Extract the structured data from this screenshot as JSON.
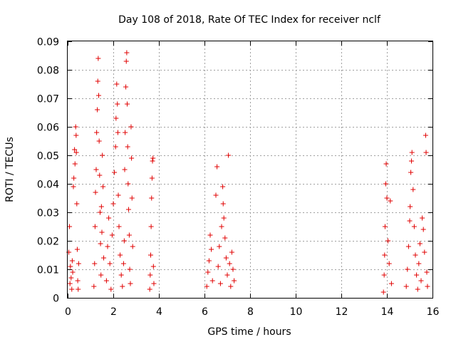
{
  "chart_data": {
    "type": "scatter",
    "title": "Day 108 of 2018, Rate Of TEC Index for receiver nclf",
    "xlabel": "GPS time / hours",
    "ylabel": "ROTI / TECUs",
    "xlim": [
      0,
      16
    ],
    "ylim": [
      0,
      0.09
    ],
    "x_ticks": [
      "0",
      "2",
      "4",
      "6",
      "8",
      "10",
      "12",
      "14",
      "16"
    ],
    "y_ticks": [
      "0",
      "0.01",
      "0.02",
      "0.03",
      "0.04",
      "0.05",
      "0.06",
      "0.07",
      "0.08",
      "0.09"
    ],
    "grid": true,
    "marker": "+",
    "color": "#e00000",
    "series": [
      {
        "name": "ROTI",
        "points": [
          [
            0.05,
            0.016
          ],
          [
            0.08,
            0.025
          ],
          [
            0.1,
            0.005
          ],
          [
            0.12,
            0.011
          ],
          [
            0.15,
            0.007
          ],
          [
            0.18,
            0.003
          ],
          [
            0.2,
            0.013
          ],
          [
            0.22,
            0.009
          ],
          [
            0.25,
            0.039
          ],
          [
            0.27,
            0.042
          ],
          [
            0.3,
            0.052
          ],
          [
            0.32,
            0.047
          ],
          [
            0.35,
            0.06
          ],
          [
            0.37,
            0.057
          ],
          [
            0.38,
            0.051
          ],
          [
            0.4,
            0.033
          ],
          [
            0.42,
            0.017
          ],
          [
            0.44,
            0.006
          ],
          [
            0.46,
            0.003
          ],
          [
            0.48,
            0.012
          ],
          [
            1.15,
            0.004
          ],
          [
            1.18,
            0.012
          ],
          [
            1.2,
            0.025
          ],
          [
            1.22,
            0.037
          ],
          [
            1.25,
            0.045
          ],
          [
            1.27,
            0.058
          ],
          [
            1.3,
            0.066
          ],
          [
            1.32,
            0.076
          ],
          [
            1.34,
            0.084
          ],
          [
            1.36,
            0.071
          ],
          [
            1.38,
            0.055
          ],
          [
            1.4,
            0.043
          ],
          [
            1.42,
            0.03
          ],
          [
            1.44,
            0.019
          ],
          [
            1.46,
            0.008
          ],
          [
            1.48,
            0.032
          ],
          [
            1.5,
            0.023
          ],
          [
            1.52,
            0.05
          ],
          [
            1.55,
            0.039
          ],
          [
            1.58,
            0.014
          ],
          [
            1.7,
            0.006
          ],
          [
            1.75,
            0.018
          ],
          [
            1.8,
            0.028
          ],
          [
            1.85,
            0.012
          ],
          [
            1.9,
            0.003
          ],
          [
            1.95,
            0.022
          ],
          [
            2.0,
            0.033
          ],
          [
            2.05,
            0.044
          ],
          [
            2.1,
            0.053
          ],
          [
            2.12,
            0.063
          ],
          [
            2.15,
            0.075
          ],
          [
            2.18,
            0.068
          ],
          [
            2.2,
            0.058
          ],
          [
            2.22,
            0.036
          ],
          [
            2.25,
            0.025
          ],
          [
            2.3,
            0.015
          ],
          [
            2.35,
            0.008
          ],
          [
            2.4,
            0.004
          ],
          [
            2.45,
            0.012
          ],
          [
            2.48,
            0.02
          ],
          [
            2.5,
            0.045
          ],
          [
            2.52,
            0.058
          ],
          [
            2.55,
            0.074
          ],
          [
            2.57,
            0.083
          ],
          [
            2.59,
            0.086
          ],
          [
            2.61,
            0.068
          ],
          [
            2.63,
            0.053
          ],
          [
            2.65,
            0.04
          ],
          [
            2.67,
            0.031
          ],
          [
            2.7,
            0.022
          ],
          [
            2.72,
            0.01
          ],
          [
            2.75,
            0.005
          ],
          [
            2.78,
            0.06
          ],
          [
            2.8,
            0.049
          ],
          [
            2.82,
            0.035
          ],
          [
            2.85,
            0.018
          ],
          [
            3.6,
            0.003
          ],
          [
            3.62,
            0.008
          ],
          [
            3.64,
            0.015
          ],
          [
            3.66,
            0.025
          ],
          [
            3.68,
            0.035
          ],
          [
            3.7,
            0.042
          ],
          [
            3.72,
            0.048
          ],
          [
            3.74,
            0.049
          ],
          [
            3.76,
            0.011
          ],
          [
            3.78,
            0.005
          ],
          [
            6.1,
            0.004
          ],
          [
            6.15,
            0.009
          ],
          [
            6.2,
            0.013
          ],
          [
            6.25,
            0.022
          ],
          [
            6.3,
            0.017
          ],
          [
            6.35,
            0.006
          ],
          [
            6.5,
            0.036
          ],
          [
            6.55,
            0.046
          ],
          [
            6.6,
            0.011
          ],
          [
            6.65,
            0.018
          ],
          [
            6.7,
            0.005
          ],
          [
            6.75,
            0.025
          ],
          [
            6.8,
            0.039
          ],
          [
            6.82,
            0.033
          ],
          [
            6.85,
            0.028
          ],
          [
            6.9,
            0.021
          ],
          [
            6.95,
            0.014
          ],
          [
            7.0,
            0.008
          ],
          [
            7.05,
            0.05
          ],
          [
            7.1,
            0.012
          ],
          [
            7.15,
            0.004
          ],
          [
            7.2,
            0.016
          ],
          [
            7.25,
            0.01
          ],
          [
            7.3,
            0.006
          ],
          [
            13.85,
            0.002
          ],
          [
            13.88,
            0.008
          ],
          [
            13.9,
            0.015
          ],
          [
            13.92,
            0.025
          ],
          [
            13.95,
            0.04
          ],
          [
            13.97,
            0.047
          ],
          [
            14.0,
            0.035
          ],
          [
            14.05,
            0.02
          ],
          [
            14.1,
            0.012
          ],
          [
            14.15,
            0.034
          ],
          [
            14.2,
            0.005
          ],
          [
            14.85,
            0.004
          ],
          [
            14.9,
            0.01
          ],
          [
            14.95,
            0.018
          ],
          [
            15.0,
            0.027
          ],
          [
            15.02,
            0.032
          ],
          [
            15.05,
            0.044
          ],
          [
            15.08,
            0.048
          ],
          [
            15.1,
            0.051
          ],
          [
            15.15,
            0.038
          ],
          [
            15.2,
            0.025
          ],
          [
            15.25,
            0.015
          ],
          [
            15.3,
            0.008
          ],
          [
            15.35,
            0.003
          ],
          [
            15.4,
            0.012
          ],
          [
            15.45,
            0.019
          ],
          [
            15.5,
            0.006
          ],
          [
            15.55,
            0.028
          ],
          [
            15.6,
            0.024
          ],
          [
            15.65,
            0.016
          ],
          [
            15.7,
            0.057
          ],
          [
            15.72,
            0.051
          ],
          [
            15.75,
            0.009
          ],
          [
            15.78,
            0.004
          ]
        ]
      }
    ]
  }
}
